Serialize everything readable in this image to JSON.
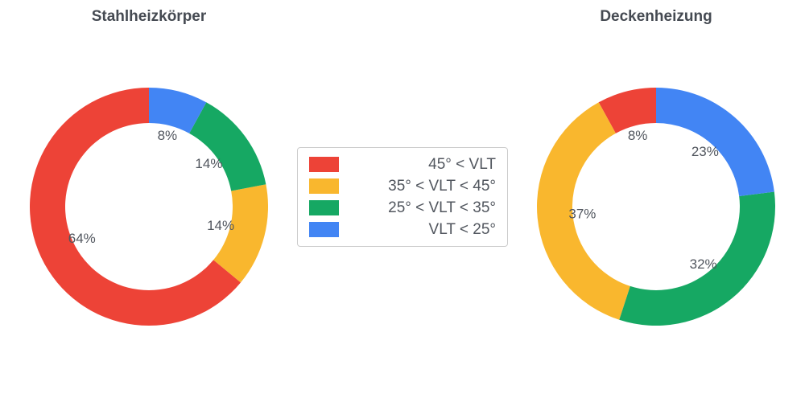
{
  "colors": {
    "red": "#ed4337",
    "yellow": "#f9b72e",
    "green": "#16a863",
    "blue": "#4285f4",
    "title_text": "#454a52",
    "label_text": "#51565e",
    "legend_border": "#cccccc"
  },
  "legend": {
    "items": [
      {
        "label": "45° < VLT",
        "color": "#ed4337"
      },
      {
        "label": "35° < VLT < 45°",
        "color": "#f9b72e"
      },
      {
        "label": "25° < VLT < 35°",
        "color": "#16a863"
      },
      {
        "label": "VLT < 25°",
        "color": "#4285f4"
      }
    ]
  },
  "chart_data": [
    {
      "type": "pie",
      "variant": "donut",
      "title": "Stahlheizkörper",
      "labels": [
        "45° < VLT",
        "35° < VLT < 45°",
        "25° < VLT < 35°",
        "VLT < 25°"
      ],
      "values": [
        64,
        14,
        14,
        8
      ],
      "unit": "%",
      "colors": [
        "#ed4337",
        "#f9b72e",
        "#16a863",
        "#4285f4"
      ],
      "start_angle_deg": 90,
      "direction": "counterclockwise",
      "donut_hole_ratio": 0.7,
      "legend_position": "center between charts"
    },
    {
      "type": "pie",
      "variant": "donut",
      "title": "Deckenheizung",
      "labels": [
        "45° < VLT",
        "35° < VLT < 45°",
        "25° < VLT < 35°",
        "VLT < 25°"
      ],
      "values": [
        8,
        37,
        32,
        23
      ],
      "unit": "%",
      "colors": [
        "#ed4337",
        "#f9b72e",
        "#16a863",
        "#4285f4"
      ],
      "start_angle_deg": 90,
      "direction": "counterclockwise",
      "donut_hole_ratio": 0.7,
      "legend_position": "center between charts"
    }
  ]
}
